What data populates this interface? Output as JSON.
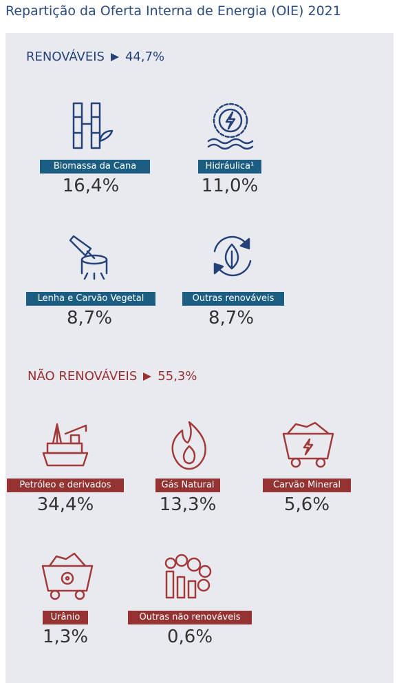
{
  "title": "Repartição da Oferta Interna de Energia (OIE) 2021",
  "sections": [
    {
      "heading": "RENOVÁVEIS",
      "total": "44,7%",
      "items": [
        {
          "label": "Biomassa da Cana",
          "value": "16,4%"
        },
        {
          "label": "Hidráulica¹",
          "value": "11,0%"
        },
        {
          "label": "Lenha e Carvão Vegetal",
          "value": "8,7%"
        },
        {
          "label": "Outras renováveis",
          "value": "8,7%"
        }
      ]
    },
    {
      "heading": "NÃO RENOVÁVEIS",
      "total": "55,3%",
      "items": [
        {
          "label": "Petróleo e derivados",
          "value": "34,4%"
        },
        {
          "label": "Gás Natural",
          "value": "13,3%"
        },
        {
          "label": "Carvão Mineral",
          "value": "5,6%"
        },
        {
          "label": "Urânio",
          "value": "1,3%"
        },
        {
          "label": "Outras não renováveis",
          "value": "0,6%"
        }
      ]
    }
  ]
}
